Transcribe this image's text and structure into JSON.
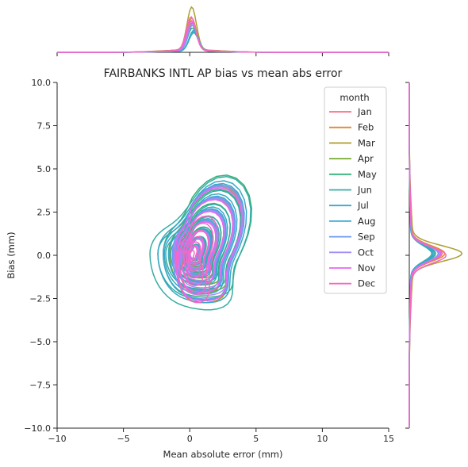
{
  "chart_data": {
    "type": "kde-joint",
    "title": "FAIRBANKS INTL AP bias vs mean abs error",
    "xlabel": "Mean absolute error (mm)",
    "ylabel": "Bias (mm)",
    "xlim": [
      -10,
      15
    ],
    "ylim": [
      -10,
      10
    ],
    "xticks": [
      "−10",
      "−5",
      "0",
      "5",
      "10",
      "15"
    ],
    "xtick_values": [
      -10,
      -5,
      0,
      5,
      10,
      15
    ],
    "yticks": [
      "−10.0",
      "−7.5",
      "−5.0",
      "−2.5",
      "0.0",
      "2.5",
      "5.0",
      "7.5",
      "10.0"
    ],
    "ytick_values": [
      -10,
      -7.5,
      -5,
      -2.5,
      0,
      2.5,
      5,
      7.5,
      10
    ],
    "grid": false,
    "legend": {
      "title": "month",
      "placement": "upper right"
    },
    "series": [
      {
        "name": "Jan",
        "color": "#f77189",
        "center": [
          0.15,
          0.1
        ],
        "extent_x": [
          -1.0,
          4.8
        ],
        "extent_y": [
          -2.6,
          4.9
        ],
        "peak_x": 2.6,
        "peak_y": 1.25
      },
      {
        "name": "Feb",
        "color": "#dc8932",
        "center": [
          0.15,
          0.1
        ],
        "extent_x": [
          -1.0,
          4.8
        ],
        "extent_y": [
          -2.6,
          4.9
        ],
        "peak_x": 2.8,
        "peak_y": 1.35
      },
      {
        "name": "Mar",
        "color": "#ae9d31",
        "center": [
          0.15,
          0.1
        ],
        "extent_x": [
          -1.1,
          4.9
        ],
        "extent_y": [
          -2.6,
          5.0
        ],
        "peak_x": 3.7,
        "peak_y": 2.0
      },
      {
        "name": "Apr",
        "color": "#77ab31",
        "center": [
          0.2,
          0.1
        ],
        "extent_x": [
          -1.5,
          5.0
        ],
        "extent_y": [
          -2.0,
          5.0
        ],
        "peak_x": 2.4,
        "peak_y": 1.2
      },
      {
        "name": "May",
        "color": "#33b07a",
        "center": [
          0.2,
          0.1
        ],
        "extent_x": [
          -2.0,
          5.7
        ],
        "extent_y": [
          -2.3,
          5.7
        ],
        "peak_x": 2.0,
        "peak_y": 1.0
      },
      {
        "name": "Jun",
        "color": "#36ada4",
        "center": [
          0.3,
          0.1
        ],
        "extent_x": [
          -3.0,
          5.6
        ],
        "extent_y": [
          -3.0,
          5.6
        ],
        "peak_x": 1.6,
        "peak_y": 0.85
      },
      {
        "name": "Jul",
        "color": "#38a9c5",
        "center": [
          0.3,
          0.1
        ],
        "extent_x": [
          -2.4,
          5.2
        ],
        "extent_y": [
          -2.6,
          5.3
        ],
        "peak_x": 1.7,
        "peak_y": 0.9
      },
      {
        "name": "Aug",
        "color": "#39a7d0",
        "center": [
          0.3,
          0.1
        ],
        "extent_x": [
          -2.0,
          5.0
        ],
        "extent_y": [
          -2.4,
          5.1
        ],
        "peak_x": 1.8,
        "peak_y": 0.95
      },
      {
        "name": "Sep",
        "color": "#6e9af4",
        "center": [
          0.2,
          0.1
        ],
        "extent_x": [
          -1.3,
          5.0
        ],
        "extent_y": [
          -2.4,
          5.0
        ],
        "peak_x": 2.2,
        "peak_y": 1.1
      },
      {
        "name": "Oct",
        "color": "#a48cf4",
        "center": [
          0.2,
          0.1
        ],
        "extent_x": [
          -1.2,
          4.9
        ],
        "extent_y": [
          -2.2,
          4.9
        ],
        "peak_x": 2.3,
        "peak_y": 1.15
      },
      {
        "name": "Nov",
        "color": "#e866f4",
        "center": [
          0.15,
          0.1
        ],
        "extent_x": [
          -1.1,
          4.8
        ],
        "extent_y": [
          -2.5,
          4.8
        ],
        "peak_x": 2.5,
        "peak_y": 1.2
      },
      {
        "name": "Dec",
        "color": "#f668c2",
        "center": [
          0.1,
          0.0
        ],
        "extent_x": [
          -1.0,
          2.6
        ],
        "extent_y": [
          -2.6,
          2.8
        ],
        "peak_x": 2.9,
        "peak_y": 1.4
      }
    ]
  }
}
